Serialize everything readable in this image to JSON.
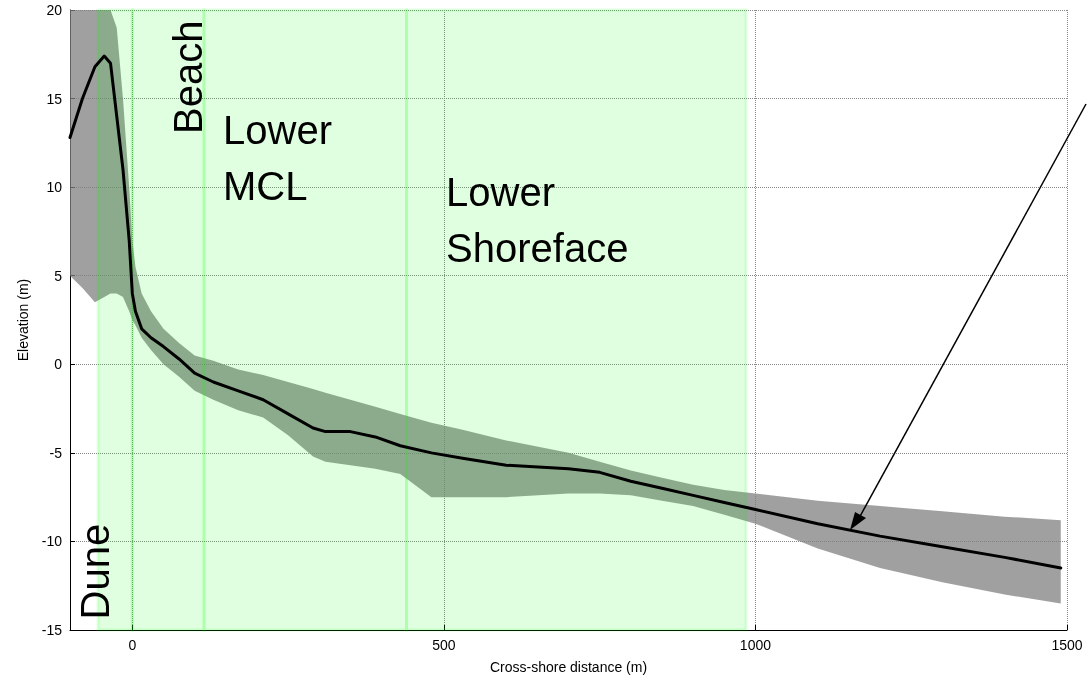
{
  "chart_data": {
    "type": "line",
    "xlabel": "Cross-shore distance (m)",
    "ylabel": "Elevation (m)",
    "xlim": [
      -100,
      1500
    ],
    "xticks": [
      0,
      500,
      1000,
      1500
    ],
    "ylim": [
      -15,
      20
    ],
    "yticks": [
      -15,
      -10,
      -5,
      0,
      5,
      10,
      15,
      20
    ],
    "grid": true,
    "marker": "none",
    "line_style": "solid",
    "series": [
      {
        "color": "#000000",
        "x": [
          -100,
          -80,
          -60,
          -45,
          -35,
          -25,
          -15,
          -5,
          0,
          5,
          15,
          30,
          50,
          75,
          100,
          130,
          170,
          210,
          250,
          290,
          310,
          350,
          390,
          430,
          480,
          530,
          600,
          700,
          750,
          800,
          850,
          900,
          950,
          1000,
          1100,
          1200,
          1300,
          1400,
          1490
        ],
        "values": [
          12.8,
          15,
          16.8,
          17.4,
          17,
          14,
          11,
          7,
          4,
          3,
          2,
          1.5,
          1,
          0.3,
          -0.5,
          -1,
          -1.5,
          -2,
          -2.8,
          -3.6,
          -3.8,
          -3.8,
          -4.1,
          -4.6,
          -5,
          -5.3,
          -5.7,
          -5.9,
          -6.1,
          -6.6,
          -7,
          -7.4,
          -7.8,
          -8.2,
          -9,
          -9.7,
          -10.3,
          -10.9,
          -11.5
        ],
        "lower": [
          5,
          4.3,
          3.5,
          3.8,
          4,
          4,
          3.8,
          3,
          2.5,
          2.2,
          1.5,
          0.8,
          0,
          -0.7,
          -1.5,
          -2,
          -2.6,
          -3,
          -4,
          -5.2,
          -5.5,
          -5.7,
          -5.9,
          -6.2,
          -7.5,
          -7.5,
          -7.5,
          -7.3,
          -7.3,
          -7.4,
          -7.7,
          -8,
          -8.5,
          -9,
          -10.4,
          -11.5,
          -12.3,
          -13,
          -13.5
        ],
        "upper": [
          20,
          20,
          20,
          20,
          20,
          19,
          15,
          10,
          7,
          5.5,
          4,
          3,
          2,
          1.2,
          0.5,
          0.2,
          -0.3,
          -0.6,
          -1,
          -1.4,
          -1.6,
          -2,
          -2.4,
          -2.8,
          -3.3,
          -3.7,
          -4.3,
          -5,
          -5.5,
          -6,
          -6.4,
          -6.8,
          -7.1,
          -7.3,
          -7.7,
          -8,
          -8.3,
          -8.6,
          -8.8
        ]
      }
    ],
    "bands": [
      {
        "axis": "x",
        "from": -55,
        "to": 0,
        "label": "Dune",
        "color": "#00ff00"
      },
      {
        "axis": "x",
        "from": 0,
        "to": 115,
        "label": "Beach",
        "color": "#00ff00"
      },
      {
        "axis": "x",
        "from": 115,
        "to": 440,
        "label": "Lower MCL",
        "color": "#00ff00"
      },
      {
        "axis": "x",
        "from": 440,
        "to": 985,
        "label": "Lower Shoreface",
        "color": "#00ff00"
      }
    ]
  }
}
